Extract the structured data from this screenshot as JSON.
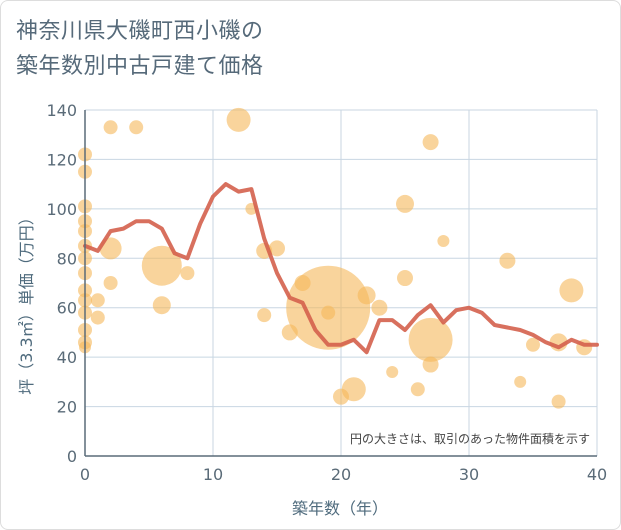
{
  "title_line1": "神奈川県大磯町西小磯の",
  "title_line2": "築年数別中古戸建て価格",
  "chart_data": {
    "type": "scatter",
    "title": "神奈川県大磯町西小磯の築年数別中古戸建て価格",
    "xlabel": "築年数（年）",
    "ylabel": "坪（3.3㎡）単価（万円）",
    "xlim": [
      0,
      40
    ],
    "ylim": [
      0,
      140
    ],
    "x_ticks": [
      0,
      10,
      20,
      30,
      40
    ],
    "y_ticks": [
      0,
      20,
      40,
      60,
      80,
      100,
      120,
      140
    ],
    "grid": true,
    "note": "円の大きさは、取引のあった物件面積を示す",
    "colors": {
      "bubble": "#f5b85a",
      "line": "#d4614c",
      "grid": "#c8d6e2",
      "axis": "#5a6b78"
    },
    "bubbles": [
      {
        "x": 0,
        "y": 122,
        "r": 7
      },
      {
        "x": 0,
        "y": 115,
        "r": 7
      },
      {
        "x": 0,
        "y": 101,
        "r": 7
      },
      {
        "x": 0,
        "y": 95,
        "r": 7
      },
      {
        "x": 0,
        "y": 91,
        "r": 7
      },
      {
        "x": 0,
        "y": 85,
        "r": 7
      },
      {
        "x": 0,
        "y": 80,
        "r": 7
      },
      {
        "x": 0,
        "y": 74,
        "r": 7
      },
      {
        "x": 0,
        "y": 67,
        "r": 7
      },
      {
        "x": 0,
        "y": 63,
        "r": 7
      },
      {
        "x": 0,
        "y": 58,
        "r": 7
      },
      {
        "x": 0,
        "y": 51,
        "r": 7
      },
      {
        "x": 0,
        "y": 46,
        "r": 7
      },
      {
        "x": 0,
        "y": 44,
        "r": 6
      },
      {
        "x": 1,
        "y": 63,
        "r": 7
      },
      {
        "x": 1,
        "y": 56,
        "r": 7
      },
      {
        "x": 2,
        "y": 133,
        "r": 7
      },
      {
        "x": 2,
        "y": 84,
        "r": 11
      },
      {
        "x": 2,
        "y": 70,
        "r": 7
      },
      {
        "x": 4,
        "y": 133,
        "r": 7
      },
      {
        "x": 6,
        "y": 77,
        "r": 20
      },
      {
        "x": 6,
        "y": 61,
        "r": 9
      },
      {
        "x": 8,
        "y": 74,
        "r": 7
      },
      {
        "x": 12,
        "y": 136,
        "r": 12
      },
      {
        "x": 13,
        "y": 100,
        "r": 6
      },
      {
        "x": 14,
        "y": 83,
        "r": 8
      },
      {
        "x": 14,
        "y": 57,
        "r": 7
      },
      {
        "x": 15,
        "y": 84,
        "r": 8
      },
      {
        "x": 16,
        "y": 50,
        "r": 8
      },
      {
        "x": 17,
        "y": 70,
        "r": 8
      },
      {
        "x": 19,
        "y": 60,
        "r": 42
      },
      {
        "x": 19,
        "y": 58,
        "r": 7
      },
      {
        "x": 20,
        "y": 24,
        "r": 8
      },
      {
        "x": 21,
        "y": 27,
        "r": 12
      },
      {
        "x": 22,
        "y": 65,
        "r": 9
      },
      {
        "x": 23,
        "y": 60,
        "r": 8
      },
      {
        "x": 24,
        "y": 34,
        "r": 6
      },
      {
        "x": 25,
        "y": 102,
        "r": 9
      },
      {
        "x": 25,
        "y": 72,
        "r": 8
      },
      {
        "x": 26,
        "y": 27,
        "r": 7
      },
      {
        "x": 27,
        "y": 127,
        "r": 8
      },
      {
        "x": 27,
        "y": 47,
        "r": 22
      },
      {
        "x": 27,
        "y": 37,
        "r": 8
      },
      {
        "x": 28,
        "y": 87,
        "r": 6
      },
      {
        "x": 33,
        "y": 79,
        "r": 8
      },
      {
        "x": 34,
        "y": 30,
        "r": 6
      },
      {
        "x": 35,
        "y": 45,
        "r": 7
      },
      {
        "x": 37,
        "y": 46,
        "r": 9
      },
      {
        "x": 37,
        "y": 22,
        "r": 7
      },
      {
        "x": 38,
        "y": 67,
        "r": 12
      },
      {
        "x": 39,
        "y": 44,
        "r": 8
      }
    ],
    "trend_line": {
      "x": [
        0,
        1,
        2,
        3,
        4,
        5,
        6,
        7,
        8,
        9,
        10,
        11,
        12,
        13,
        14,
        15,
        16,
        17,
        18,
        19,
        20,
        21,
        22,
        23,
        24,
        25,
        26,
        27,
        28,
        29,
        30,
        31,
        32,
        33,
        34,
        35,
        36,
        37,
        38,
        39,
        40
      ],
      "y": [
        85,
        83,
        91,
        92,
        95,
        95,
        92,
        82,
        80,
        94,
        105,
        110,
        107,
        108,
        88,
        74,
        64,
        62,
        51,
        45,
        45,
        47,
        42,
        55,
        55,
        51,
        57,
        61,
        54,
        59,
        60,
        58,
        53,
        52,
        51,
        49,
        46,
        44,
        47,
        45,
        45
      ]
    }
  }
}
